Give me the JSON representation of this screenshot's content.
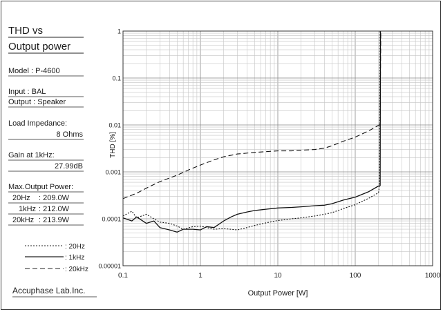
{
  "panel": {
    "title_line1": "THD vs",
    "title_line2": "Output power",
    "model": "Model    :  P-4600",
    "input": "Input    :  BAL",
    "output": "Output  :  Speaker",
    "load_label": "Load Impedance:",
    "load_value": "8 Ohms",
    "gain_label": "Gain at 1kHz:",
    "gain_value": "27.99dB",
    "maxpower_label": "Max.Output Power:",
    "maxpower_rows": [
      {
        "freq": "20Hz",
        "value": ":  209.0W"
      },
      {
        "freq": "1kHz",
        "value": ":  212.0W"
      },
      {
        "freq": "20kHz",
        "value": ":  213.9W"
      }
    ],
    "legend": [
      ": 20Hz",
      ": 1kHz",
      ": 20kHz"
    ],
    "brand": "Accuphase Lab.Inc."
  },
  "chart_data": {
    "type": "line",
    "xlabel": "Output Power  [W]",
    "ylabel": "THD [%]",
    "xscale": "log",
    "yscale": "log",
    "xlim": [
      0.1,
      1000
    ],
    "ylim": [
      1e-05,
      1
    ],
    "x_ticks": [
      "0.1",
      "1",
      "10",
      "100",
      "1000"
    ],
    "y_ticks": [
      "1",
      "0.1",
      "0.01",
      "0.001",
      "0.0001",
      "0.00001"
    ],
    "grid": true,
    "series": [
      {
        "name": "20Hz",
        "style": "dotted",
        "x": [
          0.1,
          0.13,
          0.15,
          0.2,
          0.25,
          0.3,
          0.4,
          0.5,
          0.6,
          0.8,
          1.0,
          1.2,
          1.5,
          2.0,
          3.0,
          4.0,
          5.0,
          7.0,
          10,
          15,
          20,
          30,
          40,
          50,
          70,
          100,
          150,
          200,
          205,
          209
        ],
        "y": [
          0.000115,
          0.000145,
          0.000105,
          0.000125,
          0.0001,
          8.5e-05,
          8e-05,
          7e-05,
          6e-05,
          6.8e-05,
          7e-05,
          6.5e-05,
          6e-05,
          6.2e-05,
          5.8e-05,
          6.5e-05,
          7.2e-05,
          8.2e-05,
          9.2e-05,
          0.0001,
          0.000105,
          0.000115,
          0.000125,
          0.000135,
          0.000165,
          0.0002,
          0.000275,
          0.00036,
          0.00048,
          1.0
        ]
      },
      {
        "name": "1kHz",
        "style": "solid",
        "x": [
          0.1,
          0.13,
          0.15,
          0.2,
          0.25,
          0.3,
          0.4,
          0.5,
          0.6,
          0.8,
          1.0,
          1.2,
          1.5,
          2.0,
          2.5,
          3.0,
          4.0,
          5.0,
          7.0,
          10,
          15,
          20,
          30,
          40,
          50,
          70,
          100,
          150,
          200,
          210,
          212
        ],
        "y": [
          0.000105,
          9e-05,
          0.00011,
          8e-05,
          9e-05,
          6.5e-05,
          5.8e-05,
          5.2e-05,
          6e-05,
          6e-05,
          5.8e-05,
          6.8e-05,
          6.5e-05,
          9e-05,
          0.00011,
          0.000125,
          0.00014,
          0.00015,
          0.00016,
          0.00017,
          0.000175,
          0.00018,
          0.00019,
          0.000195,
          0.00021,
          0.00025,
          0.00029,
          0.00038,
          0.0005,
          0.00051,
          1.0
        ]
      },
      {
        "name": "20kHz",
        "style": "dashed",
        "x": [
          0.1,
          0.15,
          0.2,
          0.3,
          0.5,
          0.7,
          1.0,
          1.5,
          2.0,
          3.0,
          5.0,
          7.0,
          10,
          15,
          20,
          30,
          40,
          50,
          70,
          100,
          150,
          200,
          210,
          213.9
        ],
        "y": [
          0.00027,
          0.00035,
          0.00045,
          0.00062,
          0.00085,
          0.0011,
          0.0014,
          0.0018,
          0.0021,
          0.0024,
          0.0026,
          0.0027,
          0.0028,
          0.0028,
          0.0029,
          0.003,
          0.0032,
          0.0036,
          0.0045,
          0.0055,
          0.0075,
          0.0098,
          0.0105,
          1.0
        ]
      }
    ]
  }
}
